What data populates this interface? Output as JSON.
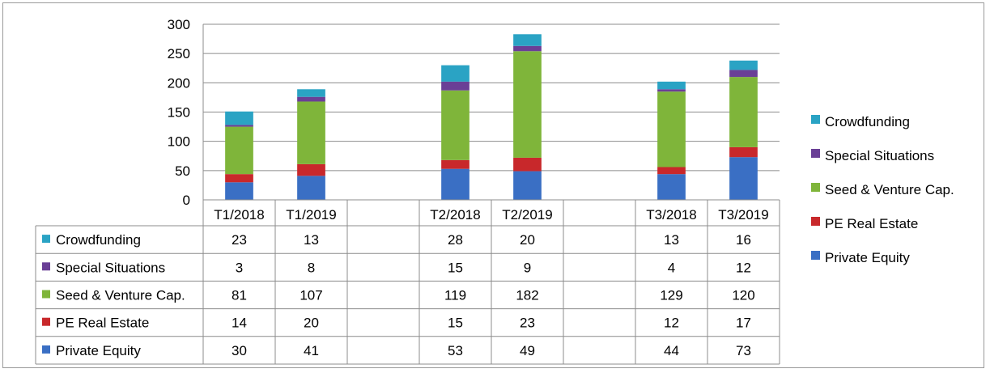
{
  "chart_data": {
    "type": "bar",
    "stacked": true,
    "categories": [
      "T1/2018",
      "T1/2019",
      "",
      "T2/2018",
      "T2/2019",
      "",
      "T3/2018",
      "T3/2019"
    ],
    "series": [
      {
        "name": "Private Equity",
        "color": "#3a6fc4",
        "values": [
          30,
          41,
          null,
          53,
          49,
          null,
          44,
          73
        ]
      },
      {
        "name": "PE Real Estate",
        "color": "#c8282b",
        "values": [
          14,
          20,
          null,
          15,
          23,
          null,
          12,
          17
        ]
      },
      {
        "name": "Seed & Venture Cap.",
        "color": "#7fb53a",
        "values": [
          81,
          107,
          null,
          119,
          182,
          null,
          129,
          120
        ]
      },
      {
        "name": "Special Situations",
        "color": "#6a3f96",
        "values": [
          3,
          8,
          null,
          15,
          9,
          null,
          4,
          12
        ]
      },
      {
        "name": "Crowdfunding",
        "color": "#2aa3c4",
        "values": [
          23,
          13,
          null,
          28,
          20,
          null,
          13,
          16
        ]
      }
    ],
    "yticks": [
      0,
      50,
      100,
      150,
      200,
      250,
      300
    ],
    "ylim": [
      0,
      300
    ],
    "grid": true,
    "legend_position": "right",
    "legend_order": [
      "Crowdfunding",
      "Special Situations",
      "Seed & Venture Cap.",
      "PE Real Estate",
      "Private Equity"
    ],
    "data_table": true
  }
}
